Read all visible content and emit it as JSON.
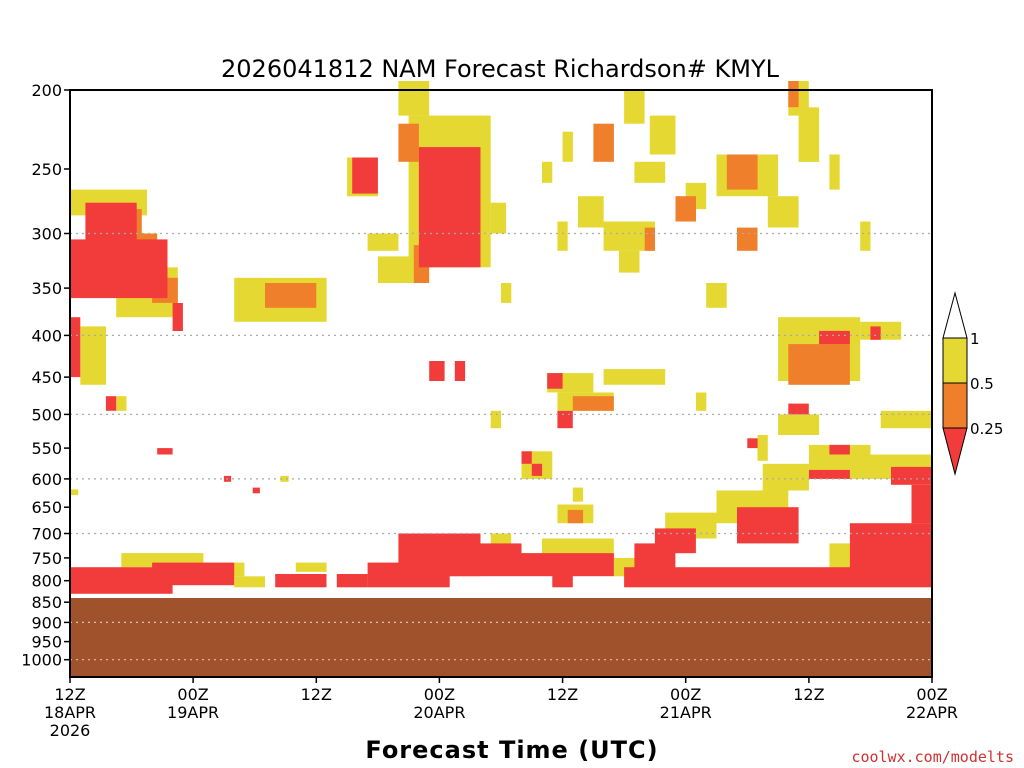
{
  "chart_data": {
    "type": "heatmap",
    "title": "2026041812 NAM Forecast Richardson# KMYL",
    "xlabel": "Forecast Time (UTC)",
    "ylabel": "",
    "credit": "coolwx.com/modelts",
    "y_axis": {
      "scale": "log-pressure",
      "range_hpa": [
        1050,
        200
      ],
      "ticks": [
        "200",
        "250",
        "300",
        "350",
        "400",
        "450",
        "500",
        "550",
        "600",
        "650",
        "700",
        "750",
        "800",
        "850",
        "900",
        "950",
        "1000"
      ],
      "tick_values": [
        200,
        250,
        300,
        350,
        400,
        450,
        500,
        550,
        600,
        650,
        700,
        750,
        800,
        850,
        900,
        950,
        1000
      ],
      "dotted_gridlines": [
        300,
        400,
        500,
        600,
        700,
        900,
        1000
      ]
    },
    "x_axis": {
      "range_hours": [
        0,
        84
      ],
      "ticks": [
        {
          "hour": 0,
          "line1": "12Z",
          "line2": "18APR",
          "line3": "2026"
        },
        {
          "hour": 12,
          "line1": "00Z",
          "line2": "19APR",
          "line3": ""
        },
        {
          "hour": 24,
          "line1": "12Z",
          "line2": "",
          "line3": ""
        },
        {
          "hour": 36,
          "line1": "00Z",
          "line2": "20APR",
          "line3": ""
        },
        {
          "hour": 48,
          "line1": "12Z",
          "line2": "",
          "line3": ""
        },
        {
          "hour": 60,
          "line1": "00Z",
          "line2": "21APR",
          "line3": ""
        },
        {
          "hour": 72,
          "line1": "12Z",
          "line2": "",
          "line3": ""
        },
        {
          "hour": 84,
          "line1": "00Z",
          "line2": "22APR",
          "line3": ""
        }
      ]
    },
    "legend": {
      "placement": "right",
      "labels": [
        "1",
        "0.5",
        "0.25"
      ],
      "bins": [
        {
          "range": "0.5-1",
          "color": "#e6d832"
        },
        {
          "range": "0.25-0.5",
          "color": "#ef7f2a"
        },
        {
          "range": "<0.25",
          "color": "#f23c3c"
        }
      ]
    },
    "terrain": {
      "below_hpa": 840,
      "color": "#a0522d"
    },
    "regions": [
      {
        "cat": "y",
        "h": [
          0,
          7.5
        ],
        "p": [
          265,
          285
        ]
      },
      {
        "cat": "r",
        "h": [
          1.5,
          6.5
        ],
        "p": [
          275,
          360
        ]
      },
      {
        "cat": "r",
        "h": [
          0,
          9.5
        ],
        "p": [
          305,
          360
        ]
      },
      {
        "cat": "o",
        "h": [
          5,
          7
        ],
        "p": [
          280,
          310
        ]
      },
      {
        "cat": "o",
        "h": [
          6.5,
          8.5
        ],
        "p": [
          300,
          330
        ]
      },
      {
        "cat": "y",
        "h": [
          4.5,
          10.5
        ],
        "p": [
          330,
          380
        ]
      },
      {
        "cat": "o",
        "h": [
          8,
          10.5
        ],
        "p": [
          340,
          365
        ]
      },
      {
        "cat": "r",
        "h": [
          10,
          11
        ],
        "p": [
          365,
          395
        ]
      },
      {
        "cat": "r",
        "h": [
          0,
          1
        ],
        "p": [
          380,
          450
        ]
      },
      {
        "cat": "y",
        "h": [
          1,
          3.5
        ],
        "p": [
          390,
          460
        ]
      },
      {
        "cat": "r",
        "h": [
          3.5,
          4.5
        ],
        "p": [
          475,
          495
        ]
      },
      {
        "cat": "y",
        "h": [
          4.5,
          5.5
        ],
        "p": [
          475,
          495
        ]
      },
      {
        "cat": "y",
        "h": [
          16,
          25
        ],
        "p": [
          340,
          385
        ]
      },
      {
        "cat": "o",
        "h": [
          19,
          24
        ],
        "p": [
          345,
          370
        ]
      },
      {
        "cat": "y",
        "h": [
          27,
          30
        ],
        "p": [
          242,
          270
        ]
      },
      {
        "cat": "r",
        "h": [
          27.5,
          30
        ],
        "p": [
          242,
          268
        ]
      },
      {
        "cat": "y",
        "h": [
          29,
          32
        ],
        "p": [
          300,
          315
        ]
      },
      {
        "cat": "y",
        "h": [
          30,
          34
        ],
        "p": [
          320,
          345
        ]
      },
      {
        "cat": "y",
        "h": [
          32,
          35
        ],
        "p": [
          195,
          215
        ]
      },
      {
        "cat": "o",
        "h": [
          32,
          34
        ],
        "p": [
          220,
          245
        ]
      },
      {
        "cat": "y",
        "h": [
          33,
          41
        ],
        "p": [
          215,
          330
        ]
      },
      {
        "cat": "r",
        "h": [
          34,
          40
        ],
        "p": [
          235,
          330
        ]
      },
      {
        "cat": "o",
        "h": [
          33.5,
          35
        ],
        "p": [
          310,
          345
        ]
      },
      {
        "cat": "y",
        "h": [
          35,
          36.5
        ],
        "p": [
          270,
          310
        ]
      },
      {
        "cat": "r",
        "h": [
          35,
          36.5
        ],
        "p": [
          430,
          455
        ]
      },
      {
        "cat": "r",
        "h": [
          37.5,
          38.5
        ],
        "p": [
          430,
          455
        ]
      },
      {
        "cat": "y",
        "h": [
          41,
          42.5
        ],
        "p": [
          275,
          300
        ]
      },
      {
        "cat": "y",
        "h": [
          42,
          43
        ],
        "p": [
          345,
          365
        ]
      },
      {
        "cat": "y",
        "h": [
          46,
          47
        ],
        "p": [
          245,
          260
        ]
      },
      {
        "cat": "y",
        "h": [
          47.5,
          48.5
        ],
        "p": [
          290,
          315
        ]
      },
      {
        "cat": "y",
        "h": [
          48,
          49
        ],
        "p": [
          225,
          245
        ]
      },
      {
        "cat": "y",
        "h": [
          49.5,
          52
        ],
        "p": [
          270,
          295
        ]
      },
      {
        "cat": "o",
        "h": [
          51,
          53
        ],
        "p": [
          220,
          245
        ]
      },
      {
        "cat": "y",
        "h": [
          52,
          57
        ],
        "p": [
          290,
          315
        ]
      },
      {
        "cat": "o",
        "h": [
          56,
          57
        ],
        "p": [
          295,
          315
        ]
      },
      {
        "cat": "y",
        "h": [
          53.5,
          55.5
        ],
        "p": [
          315,
          335
        ]
      },
      {
        "cat": "y",
        "h": [
          54,
          56
        ],
        "p": [
          200,
          220
        ]
      },
      {
        "cat": "y",
        "h": [
          55,
          58
        ],
        "p": [
          245,
          260
        ]
      },
      {
        "cat": "y",
        "h": [
          56.5,
          59
        ],
        "p": [
          215,
          240
        ]
      },
      {
        "cat": "o",
        "h": [
          59,
          61
        ],
        "p": [
          270,
          290
        ]
      },
      {
        "cat": "y",
        "h": [
          60,
          62
        ],
        "p": [
          260,
          280
        ]
      },
      {
        "cat": "y",
        "h": [
          62,
          64
        ],
        "p": [
          345,
          370
        ]
      },
      {
        "cat": "y",
        "h": [
          63,
          69
        ],
        "p": [
          240,
          270
        ]
      },
      {
        "cat": "o",
        "h": [
          64,
          67
        ],
        "p": [
          240,
          265
        ]
      },
      {
        "cat": "y",
        "h": [
          68,
          71
        ],
        "p": [
          270,
          295
        ]
      },
      {
        "cat": "o",
        "h": [
          65,
          67
        ],
        "p": [
          295,
          315
        ]
      },
      {
        "cat": "y",
        "h": [
          70,
          72
        ],
        "p": [
          195,
          215
        ]
      },
      {
        "cat": "o",
        "h": [
          70,
          71
        ],
        "p": [
          195,
          210
        ]
      },
      {
        "cat": "y",
        "h": [
          71,
          73
        ],
        "p": [
          210,
          245
        ]
      },
      {
        "cat": "y",
        "h": [
          74,
          75
        ],
        "p": [
          240,
          265
        ]
      },
      {
        "cat": "y",
        "h": [
          77,
          78
        ],
        "p": [
          290,
          315
        ]
      },
      {
        "cat": "y",
        "h": [
          69,
          77
        ],
        "p": [
          380,
          455
        ]
      },
      {
        "cat": "o",
        "h": [
          70,
          76
        ],
        "p": [
          410,
          460
        ]
      },
      {
        "cat": "r",
        "h": [
          73,
          76
        ],
        "p": [
          395,
          410
        ]
      },
      {
        "cat": "r",
        "h": [
          70,
          72
        ],
        "p": [
          485,
          500
        ]
      },
      {
        "cat": "y",
        "h": [
          77,
          81
        ],
        "p": [
          385,
          405
        ]
      },
      {
        "cat": "r",
        "h": [
          78,
          79
        ],
        "p": [
          390,
          405
        ]
      },
      {
        "cat": "y",
        "h": [
          79,
          84
        ],
        "p": [
          495,
          520
        ]
      },
      {
        "cat": "y",
        "h": [
          46.5,
          51
        ],
        "p": [
          445,
          470
        ]
      },
      {
        "cat": "r",
        "h": [
          46.5,
          48
        ],
        "p": [
          445,
          465
        ]
      },
      {
        "cat": "y",
        "h": [
          47.5,
          53
        ],
        "p": [
          470,
          495
        ]
      },
      {
        "cat": "o",
        "h": [
          49,
          53
        ],
        "p": [
          475,
          495
        ]
      },
      {
        "cat": "y",
        "h": [
          52,
          58
        ],
        "p": [
          440,
          460
        ]
      },
      {
        "cat": "r",
        "h": [
          47.5,
          49
        ],
        "p": [
          495,
          520
        ]
      },
      {
        "cat": "y",
        "h": [
          41,
          42
        ],
        "p": [
          495,
          520
        ]
      },
      {
        "cat": "y",
        "h": [
          61,
          62
        ],
        "p": [
          470,
          495
        ]
      },
      {
        "cat": "y",
        "h": [
          44,
          47
        ],
        "p": [
          555,
          600
        ]
      },
      {
        "cat": "r",
        "h": [
          44,
          45
        ],
        "p": [
          555,
          575
        ]
      },
      {
        "cat": "r",
        "h": [
          45,
          46
        ],
        "p": [
          575,
          595
        ]
      },
      {
        "cat": "y",
        "h": [
          47.5,
          51
        ],
        "p": [
          645,
          680
        ]
      },
      {
        "cat": "o",
        "h": [
          48.5,
          50
        ],
        "p": [
          655,
          680
        ]
      },
      {
        "cat": "y",
        "h": [
          49,
          50
        ],
        "p": [
          615,
          640
        ]
      },
      {
        "cat": "y",
        "h": [
          67,
          68
        ],
        "p": [
          530,
          570
        ]
      },
      {
        "cat": "r",
        "h": [
          66,
          67
        ],
        "p": [
          535,
          550
        ]
      },
      {
        "cat": "y",
        "h": [
          67.5,
          72
        ],
        "p": [
          575,
          620
        ]
      },
      {
        "cat": "y",
        "h": [
          72,
          78
        ],
        "p": [
          545,
          600
        ]
      },
      {
        "cat": "r",
        "h": [
          72,
          76
        ],
        "p": [
          585,
          600
        ]
      },
      {
        "cat": "r",
        "h": [
          74,
          76
        ],
        "p": [
          545,
          560
        ]
      },
      {
        "cat": "y",
        "h": [
          78,
          84
        ],
        "p": [
          560,
          600
        ]
      },
      {
        "cat": "r",
        "h": [
          80,
          84
        ],
        "p": [
          580,
          610
        ]
      },
      {
        "cat": "y",
        "h": [
          63,
          70
        ],
        "p": [
          620,
          680
        ]
      },
      {
        "cat": "r",
        "h": [
          65,
          71
        ],
        "p": [
          650,
          720
        ]
      },
      {
        "cat": "y",
        "h": [
          58,
          63
        ],
        "p": [
          660,
          710
        ]
      },
      {
        "cat": "r",
        "h": [
          57,
          61
        ],
        "p": [
          690,
          740
        ]
      },
      {
        "cat": "r",
        "h": [
          55,
          59
        ],
        "p": [
          720,
          780
        ]
      },
      {
        "cat": "y",
        "h": [
          53,
          57
        ],
        "p": [
          750,
          790
        ]
      },
      {
        "cat": "r",
        "h": [
          54,
          84
        ],
        "p": [
          770,
          815
        ]
      },
      {
        "cat": "r",
        "h": [
          76,
          84
        ],
        "p": [
          680,
          780
        ]
      },
      {
        "cat": "y",
        "h": [
          74,
          80
        ],
        "p": [
          720,
          780
        ]
      },
      {
        "cat": "r",
        "h": [
          82,
          84
        ],
        "p": [
          610,
          680
        ]
      },
      {
        "cat": "r",
        "h": [
          32,
          40
        ],
        "p": [
          700,
          790
        ]
      },
      {
        "cat": "y",
        "h": [
          35,
          40
        ],
        "p": [
          700,
          740
        ]
      },
      {
        "cat": "r",
        "h": [
          29,
          37
        ],
        "p": [
          760,
          815
        ]
      },
      {
        "cat": "r",
        "h": [
          40,
          44
        ],
        "p": [
          720,
          790
        ]
      },
      {
        "cat": "y",
        "h": [
          41,
          43
        ],
        "p": [
          700,
          720
        ]
      },
      {
        "cat": "r",
        "h": [
          44,
          53
        ],
        "p": [
          740,
          790
        ]
      },
      {
        "cat": "y",
        "h": [
          46,
          53
        ],
        "p": [
          710,
          740
        ]
      },
      {
        "cat": "r",
        "h": [
          47,
          49
        ],
        "p": [
          780,
          815
        ]
      },
      {
        "cat": "r",
        "h": [
          0,
          10
        ],
        "p": [
          770,
          830
        ]
      },
      {
        "cat": "y",
        "h": [
          5,
          13
        ],
        "p": [
          740,
          770
        ]
      },
      {
        "cat": "r",
        "h": [
          8,
          16
        ],
        "p": [
          760,
          810
        ]
      },
      {
        "cat": "y",
        "h": [
          13,
          17
        ],
        "p": [
          760,
          790
        ]
      },
      {
        "cat": "y",
        "h": [
          16,
          19
        ],
        "p": [
          790,
          815
        ]
      },
      {
        "cat": "r",
        "h": [
          20,
          25
        ],
        "p": [
          785,
          815
        ]
      },
      {
        "cat": "y",
        "h": [
          22,
          25
        ],
        "p": [
          760,
          780
        ]
      },
      {
        "cat": "r",
        "h": [
          26,
          29
        ],
        "p": [
          785,
          815
        ]
      },
      {
        "cat": "r",
        "h": [
          8.5,
          10
        ],
        "p": [
          550,
          560
        ]
      },
      {
        "cat": "r",
        "h": [
          15,
          15.7
        ],
        "p": [
          595,
          605
        ]
      },
      {
        "cat": "r",
        "h": [
          17.8,
          18.5
        ],
        "p": [
          615,
          625
        ]
      },
      {
        "cat": "y",
        "h": [
          20.5,
          21.3
        ],
        "p": [
          595,
          605
        ]
      },
      {
        "cat": "y",
        "h": [
          0,
          0.8
        ],
        "p": [
          618,
          628
        ]
      },
      {
        "cat": "y",
        "h": [
          69,
          73
        ],
        "p": [
          500,
          530
        ]
      }
    ]
  }
}
